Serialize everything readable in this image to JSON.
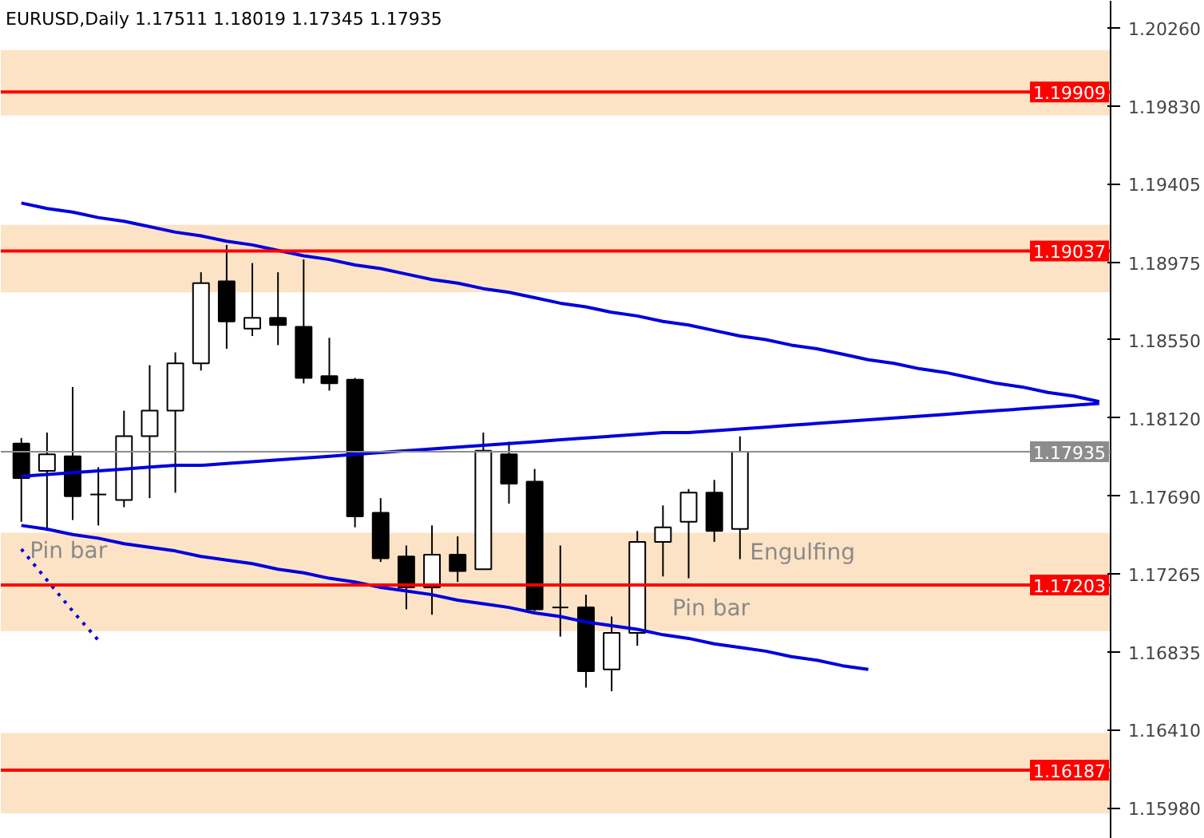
{
  "chart_data": {
    "type": "candlestick",
    "title": "EURUSD,Daily  1.17511 1.18019 1.17345 1.17935",
    "categories": [
      null,
      null,
      null,
      null,
      null,
      null,
      null,
      null,
      null,
      null,
      null,
      null,
      null,
      null,
      null,
      null,
      null,
      null,
      null,
      null,
      null,
      null,
      null,
      null,
      null,
      null,
      null,
      null,
      null,
      null,
      null,
      null,
      null,
      null,
      null,
      null,
      null,
      null,
      null,
      null,
      null,
      null,
      null
    ],
    "ohlc": [
      [
        1.1798,
        1.1801,
        1.1755,
        1.1779
      ],
      [
        1.1783,
        1.1804,
        1.175,
        1.1792
      ],
      [
        1.1791,
        1.1829,
        1.1756,
        1.1769
      ],
      [
        1.177,
        1.1785,
        1.1753,
        1.177
      ],
      [
        1.1767,
        1.1816,
        1.1763,
        1.1802
      ],
      [
        1.1802,
        1.1841,
        1.1768,
        1.1816
      ],
      [
        1.1816,
        1.1848,
        1.1771,
        1.1842
      ],
      [
        1.1842,
        1.1892,
        1.1838,
        1.1886
      ],
      [
        1.1887,
        1.1907,
        1.185,
        1.1865
      ],
      [
        1.1861,
        1.1897,
        1.1857,
        1.1867
      ],
      [
        1.1867,
        1.1892,
        1.1852,
        1.1863
      ],
      [
        1.1862,
        1.1899,
        1.1831,
        1.1834
      ],
      [
        1.1835,
        1.1856,
        1.1827,
        1.1831
      ],
      [
        1.1833,
        1.1834,
        1.1752,
        1.1758
      ],
      [
        1.176,
        1.1768,
        1.1733,
        1.1735
      ],
      [
        1.1736,
        1.1742,
        1.1707,
        1.1719
      ],
      [
        1.1719,
        1.1753,
        1.1704,
        1.1737
      ],
      [
        1.1737,
        1.1747,
        1.1722,
        1.1728
      ],
      [
        1.1729,
        1.1804,
        1.1729,
        1.1794
      ],
      [
        1.1792,
        1.1799,
        1.1765,
        1.1776
      ],
      [
        1.1777,
        1.1784,
        1.1706,
        1.1707
      ],
      [
        1.1708,
        1.1742,
        1.1692,
        1.1708
      ],
      [
        1.1708,
        1.1715,
        1.1664,
        1.1673
      ],
      [
        1.1674,
        1.1703,
        1.1662,
        1.1694
      ],
      [
        1.1694,
        1.175,
        1.1687,
        1.1744
      ],
      [
        1.1744,
        1.1764,
        1.1725,
        1.1752
      ],
      [
        1.1755,
        1.1773,
        1.1724,
        1.1771
      ],
      [
        1.1771,
        1.1778,
        1.1744,
        1.175
      ],
      [
        1.17511,
        1.18019,
        1.17345,
        1.17935
      ],
      null,
      null,
      null,
      null,
      null,
      null,
      null,
      null,
      null,
      null,
      null,
      null,
      null,
      null
    ],
    "series": [
      {
        "type": "line",
        "color": "#0000dd",
        "line_style": "solid",
        "values": [
          1.193,
          1.1927,
          1.1925,
          1.1922,
          1.192,
          1.1917,
          1.1914,
          1.1912,
          1.1909,
          1.1907,
          1.1904,
          1.1901,
          1.1899,
          1.1896,
          1.1894,
          1.1891,
          1.1888,
          1.1886,
          1.1883,
          1.1881,
          1.1878,
          1.1875,
          1.1873,
          1.187,
          1.1868,
          1.1865,
          1.1863,
          1.186,
          1.1857,
          1.1855,
          1.1852,
          1.185,
          1.1847,
          1.1844,
          1.1842,
          1.1839,
          1.1837,
          1.1834,
          1.1831,
          1.1829,
          1.1826,
          1.1824,
          1.1821
        ]
      },
      {
        "type": "line",
        "color": "#0000dd",
        "line_style": "solid",
        "values": [
          1.178,
          1.1781,
          1.1782,
          1.1783,
          1.1784,
          1.1785,
          1.1786,
          1.1786,
          1.1787,
          1.1788,
          1.1789,
          1.179,
          1.1791,
          1.1792,
          1.1793,
          1.1794,
          1.1795,
          1.1796,
          1.1797,
          1.1798,
          1.1799,
          1.18,
          1.1801,
          1.1802,
          1.1803,
          1.1804,
          1.1804,
          1.1805,
          1.1806,
          1.1807,
          1.1808,
          1.1809,
          1.181,
          1.1811,
          1.1812,
          1.1813,
          1.1814,
          1.1815,
          1.1816,
          1.1817,
          1.1818,
          1.1819,
          1.182
        ]
      },
      {
        "type": "line",
        "color": "#0000dd",
        "line_style": "solid",
        "values": [
          1.1753,
          1.1751,
          1.1748,
          1.1746,
          1.1743,
          1.1741,
          1.1739,
          1.1736,
          1.1734,
          1.1732,
          1.1729,
          1.1727,
          1.1724,
          1.1722,
          1.1719,
          1.1717,
          1.1715,
          1.1712,
          1.171,
          1.1708,
          1.1705,
          1.1703,
          1.17,
          1.1698,
          1.1696,
          1.1693,
          1.1691,
          1.1688,
          1.1686,
          1.1684,
          1.1681,
          1.1679,
          1.1676,
          1.1674,
          null,
          null,
          null,
          null,
          null,
          null,
          null,
          null,
          null
        ]
      },
      {
        "type": "line",
        "color": "#0000dd",
        "line_style": "dotted",
        "values": [
          1.174,
          1.1723,
          1.1706,
          1.169,
          null,
          null,
          null,
          null,
          null,
          null,
          null,
          null,
          null,
          null,
          null,
          null,
          null,
          null,
          null,
          null,
          null,
          null,
          null,
          null,
          null,
          null,
          null,
          null,
          null,
          null,
          null,
          null,
          null,
          null,
          null,
          null,
          null,
          null,
          null,
          null,
          null,
          null,
          null
        ]
      }
    ],
    "ylim": [
      1.1581,
      1.2041
    ],
    "yticks": [
      {
        "value": 1.2026,
        "label": "1.20260"
      },
      {
        "value": 1.1983,
        "label": "1.19830"
      },
      {
        "value": 1.19405,
        "label": "1.19405"
      },
      {
        "value": 1.18975,
        "label": "1.18975"
      },
      {
        "value": 1.1855,
        "label": "1.18550"
      },
      {
        "value": 1.1812,
        "label": "1.18120"
      },
      {
        "value": 1.1769,
        "label": "1.17690"
      },
      {
        "value": 1.17265,
        "label": "1.17265"
      },
      {
        "value": 1.16835,
        "label": "1.16835"
      },
      {
        "value": 1.1641,
        "label": "1.16410"
      },
      {
        "value": 1.1598,
        "label": "1.15980"
      }
    ],
    "bands": [
      {
        "axis": "y",
        "from": 1.1978,
        "to": 1.2014,
        "color": "#fde3c5"
      },
      {
        "axis": "y",
        "from": 1.1881,
        "to": 1.1918,
        "color": "#fde3c5"
      },
      {
        "axis": "y",
        "from": 1.1695,
        "to": 1.1749,
        "color": "#fde3c5"
      },
      {
        "axis": "y",
        "from": 1.1595,
        "to": 1.1639,
        "color": "#fde3c5"
      }
    ],
    "ref_lines": [
      {
        "axis": "y",
        "value": 1.19909,
        "label": "1.19909",
        "color": "#ff0000"
      },
      {
        "axis": "y",
        "value": 1.19037,
        "label": "1.19037",
        "color": "#ff0000"
      },
      {
        "axis": "y",
        "value": 1.17935,
        "label": "1.17935",
        "color": "#8c8c8c"
      },
      {
        "axis": "y",
        "value": 1.17203,
        "label": "1.17203",
        "color": "#ff0000"
      },
      {
        "axis": "y",
        "value": 1.16187,
        "label": "1.16187",
        "color": "#ff0000"
      }
    ],
    "annotations": [
      "Pin bar",
      "Pin bar",
      "Engulfing"
    ],
    "grid": false,
    "tick_labels": "y"
  }
}
